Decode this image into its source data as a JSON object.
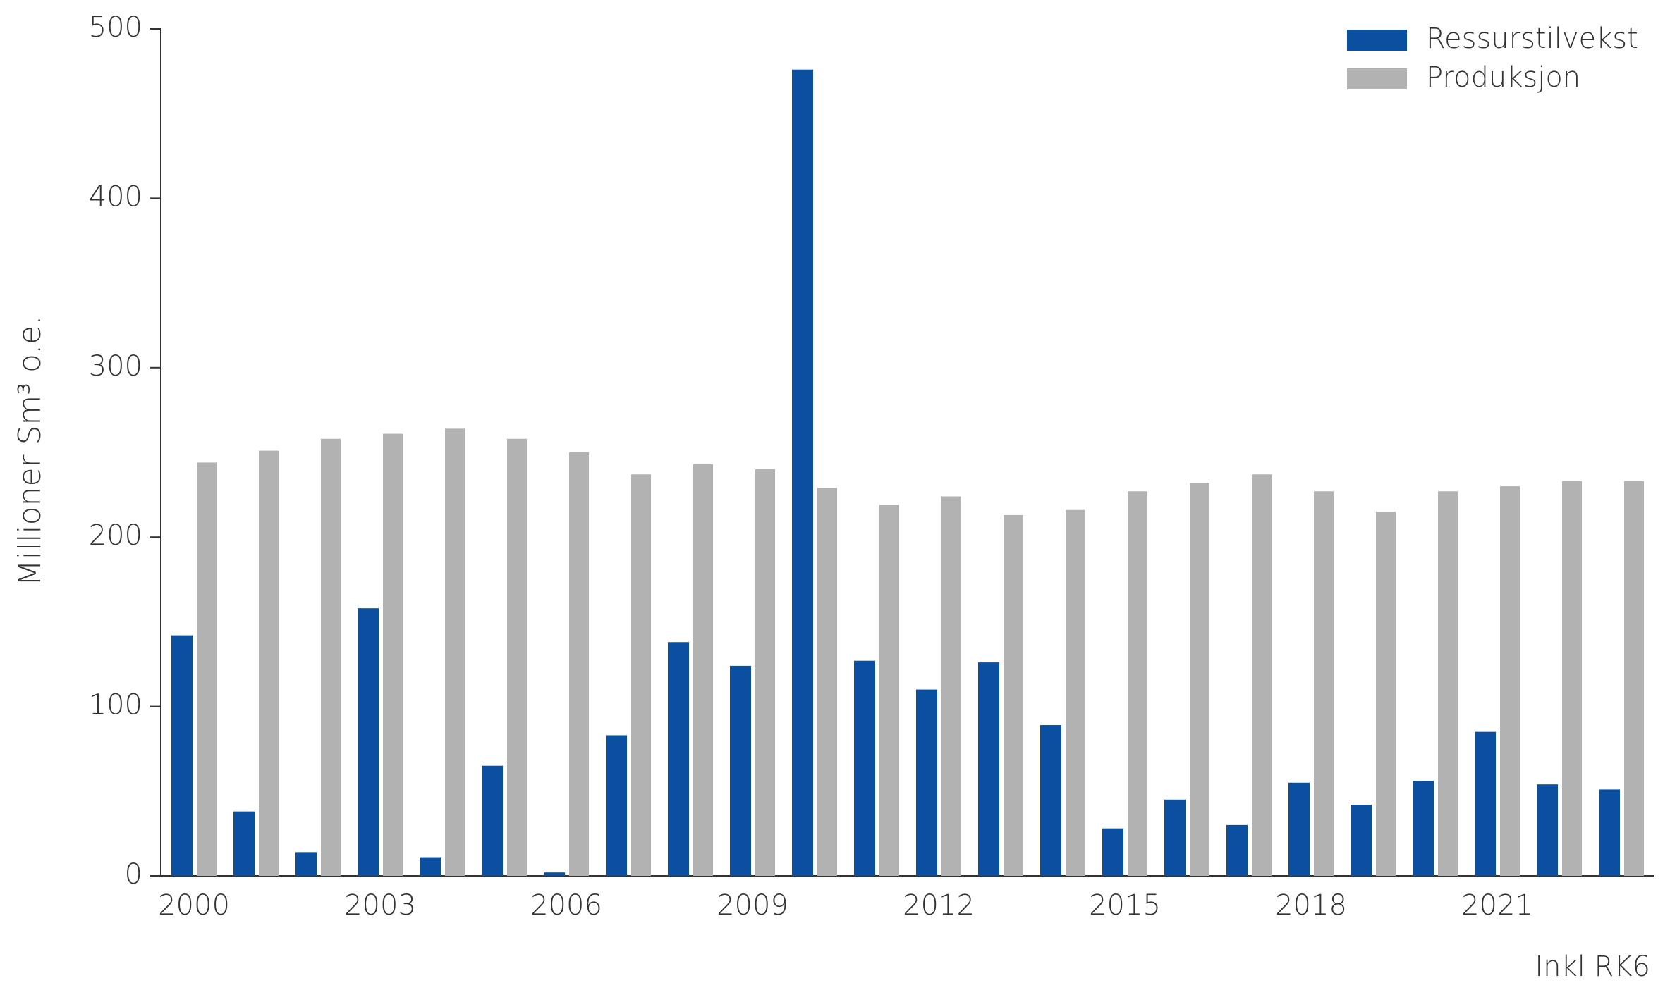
{
  "chart_data": {
    "type": "bar",
    "y_label": "Millioner Sm³ o.e.",
    "note": "Inkl RK6",
    "categories": [
      "2000",
      null,
      null,
      "2003",
      null,
      null,
      "2006",
      null,
      null,
      "2009",
      null,
      null,
      "2012",
      null,
      null,
      "2015",
      null,
      null,
      "2018",
      null,
      null,
      "2021",
      null,
      null
    ],
    "series": [
      {
        "name": "Ressurstilvekst",
        "color": "#0b4fa0",
        "values": [
          142,
          38,
          14,
          158,
          11,
          65,
          2,
          83,
          138,
          124,
          476,
          127,
          110,
          126,
          89,
          28,
          45,
          30,
          55,
          42,
          56,
          85,
          54,
          51
        ]
      },
      {
        "name": "Produksjon",
        "color": "#b2b2b2",
        "values": [
          244,
          251,
          258,
          261,
          264,
          258,
          250,
          237,
          243,
          240,
          229,
          219,
          224,
          213,
          216,
          227,
          232,
          237,
          227,
          215,
          227,
          230,
          233,
          233
        ]
      }
    ],
    "ylim": [
      0,
      500
    ],
    "yticks": [
      0,
      100,
      200,
      300,
      400,
      500
    ],
    "legend": "top-right"
  }
}
